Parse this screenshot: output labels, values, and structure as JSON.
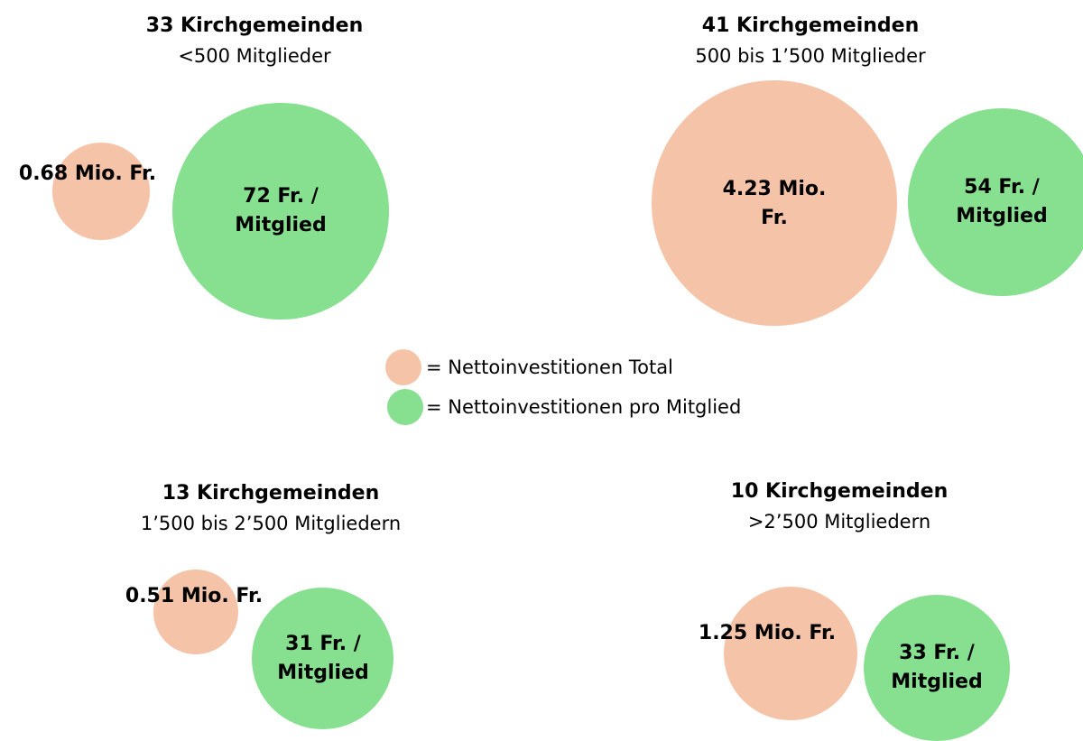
{
  "legend": [
    {
      "label": "= Nettoinvestitionen Total",
      "color": "#f5c4a8"
    },
    {
      "label": "= Nettoinvestitionen pro Mitglied",
      "color": "#86e08f"
    }
  ],
  "groups": [
    {
      "title": "33 Kirchgemeinden",
      "subtitle": "<500 Mitglieder",
      "total": 0.68,
      "total_label": "0.68 Mio. Fr.",
      "per_member": 72,
      "per_member_label": "72 Fr. / Mitglied"
    },
    {
      "title": "41 Kirchgemeinden",
      "subtitle": "500 bis 1’500 Mitglieder",
      "total": 4.23,
      "total_label": "4.23 Mio. Fr.",
      "per_member": 54,
      "per_member_label": "54 Fr. / Mitglied"
    },
    {
      "title": "13 Kirchgemeinden",
      "subtitle": "1’500 bis 2’500 Mitgliedern",
      "total": 0.51,
      "total_label": "0.51 Mio. Fr.",
      "per_member": 31,
      "per_member_label": "31 Fr. / Mitglied"
    },
    {
      "title": "10 Kirchgemeinden",
      "subtitle": ">2’500 Mitgliedern",
      "total": 1.25,
      "total_label": "1.25 Mio. Fr.",
      "per_member": 33,
      "per_member_label": "33 Fr. / Mitglied"
    }
  ]
}
